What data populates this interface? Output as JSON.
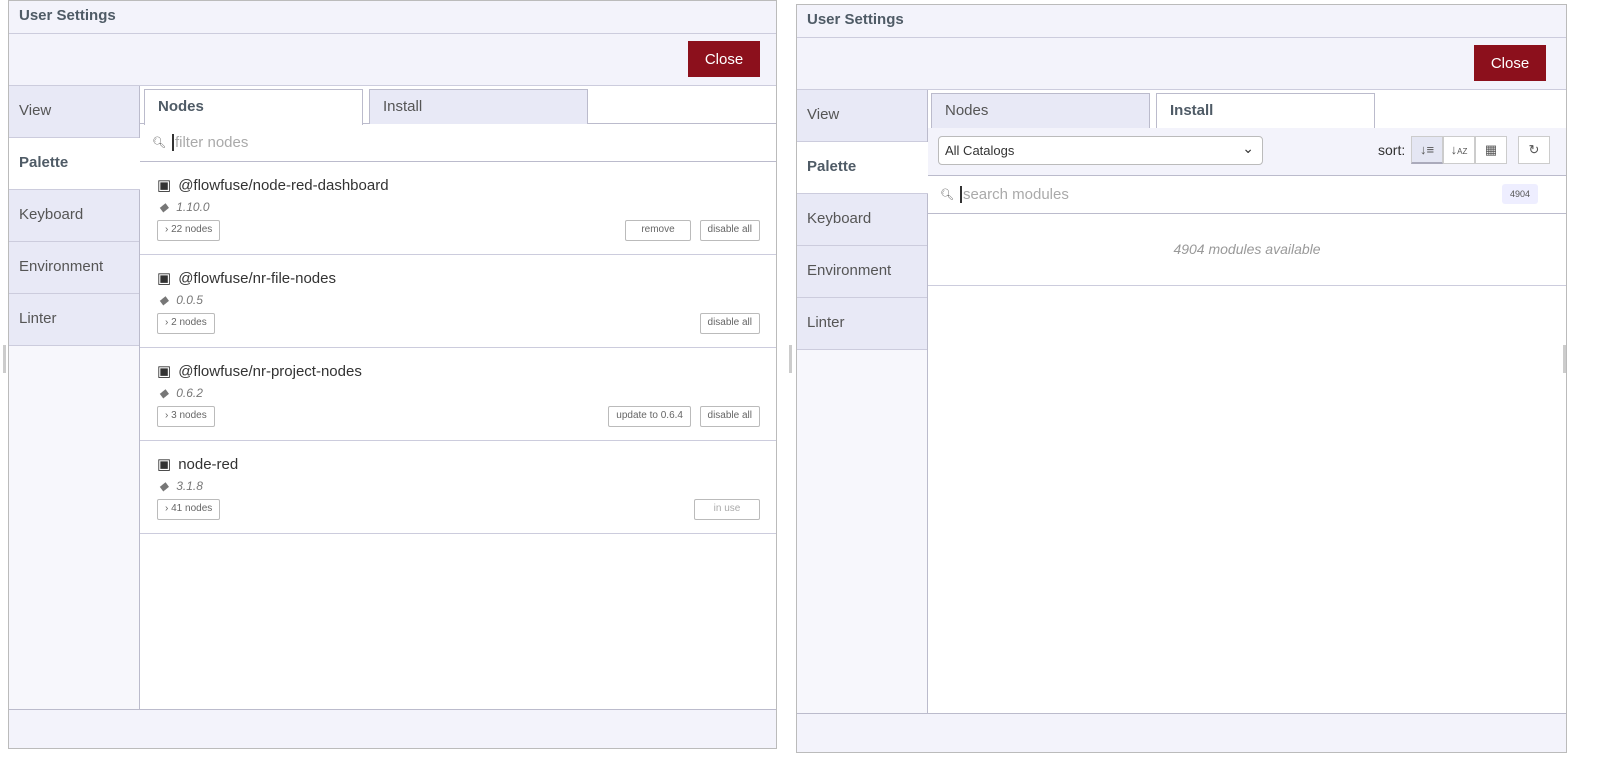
{
  "left": {
    "title": "User Settings",
    "close_label": "Close",
    "sidebar": [
      {
        "label": "View"
      },
      {
        "label": "Palette",
        "active": true
      },
      {
        "label": "Keyboard"
      },
      {
        "label": "Environment"
      },
      {
        "label": "Linter"
      }
    ],
    "tabs": [
      {
        "label": "Nodes",
        "active": true
      },
      {
        "label": "Install"
      }
    ],
    "filter_placeholder": "filter nodes",
    "modules": [
      {
        "name": "@flowfuse/node-red-dashboard",
        "version": "1.10.0",
        "nodes": "22 nodes",
        "actions": [
          "remove",
          "disable all"
        ]
      },
      {
        "name": "@flowfuse/nr-file-nodes",
        "version": "0.0.5",
        "nodes": "2 nodes",
        "actions": [
          "disable all"
        ]
      },
      {
        "name": "@flowfuse/nr-project-nodes",
        "version": "0.6.2",
        "nodes": "3 nodes",
        "actions": [
          "update to 0.6.4",
          "disable all"
        ]
      },
      {
        "name": "node-red",
        "version": "3.1.8",
        "nodes": "41 nodes",
        "actions": [
          "in use"
        ]
      }
    ]
  },
  "right": {
    "title": "User Settings",
    "close_label": "Close",
    "sidebar": [
      {
        "label": "View"
      },
      {
        "label": "Palette",
        "active": true
      },
      {
        "label": "Keyboard"
      },
      {
        "label": "Environment"
      },
      {
        "label": "Linter"
      }
    ],
    "tabs": [
      {
        "label": "Nodes"
      },
      {
        "label": "Install",
        "active": true
      }
    ],
    "catalog": "All Catalogs",
    "sort_label": "sort:",
    "sort_options": [
      "sort-relevance-icon",
      "sort-alpha-icon",
      "sort-date-icon"
    ],
    "search_placeholder": "search modules",
    "count": "4904",
    "available": "4904 modules available"
  },
  "colors": {
    "close": "#8c101c",
    "accent": "#4f5b66"
  }
}
